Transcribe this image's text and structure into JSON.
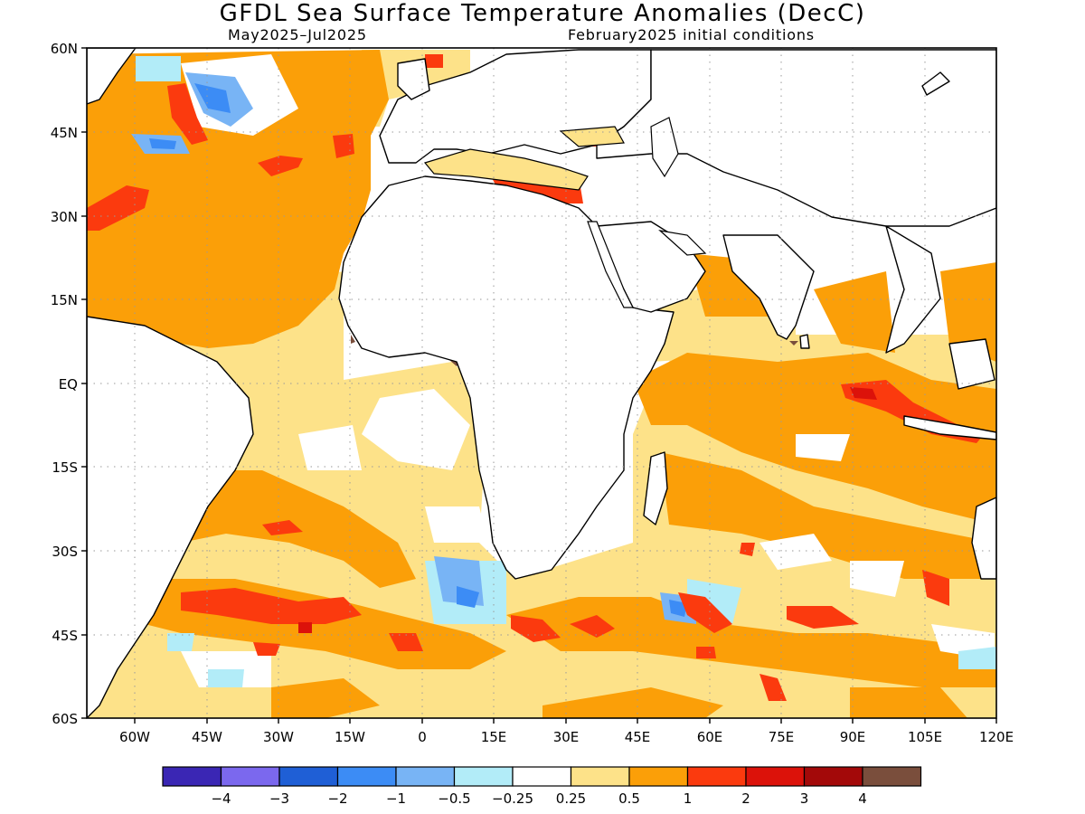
{
  "title": "GFDL Sea Surface Temperature Anomalies (DecC)",
  "subtitle_left": "May2025–Jul2025",
  "subtitle_right": "February2025 initial conditions",
  "map": {
    "lon_range": [
      -70,
      120
    ],
    "lat_range": [
      -60,
      60
    ],
    "grid": "dotted",
    "lon_ticks": [
      "60W",
      "45W",
      "30W",
      "15W",
      "0",
      "15E",
      "30E",
      "45E",
      "60E",
      "75E",
      "90E",
      "105E",
      "120E"
    ],
    "lat_ticks": [
      "60N",
      "45N",
      "30N",
      "15N",
      "EQ",
      "15S",
      "30S",
      "45S",
      "60S"
    ]
  },
  "colorbar": {
    "colors": [
      "#3a26b4",
      "#7b68ee",
      "#1f5fd6",
      "#3c8cf5",
      "#78b4f5",
      "#b2ecf8",
      "#ffffff",
      "#fde289",
      "#fb9f08",
      "#fb3a0e",
      "#dc120a",
      "#a30909",
      "#7a4e3c"
    ],
    "labels": [
      "−4",
      "−3",
      "−2",
      "−1",
      "−0.5",
      "−0.25",
      "0.25",
      "0.5",
      "1",
      "2",
      "3",
      "4"
    ]
  }
}
